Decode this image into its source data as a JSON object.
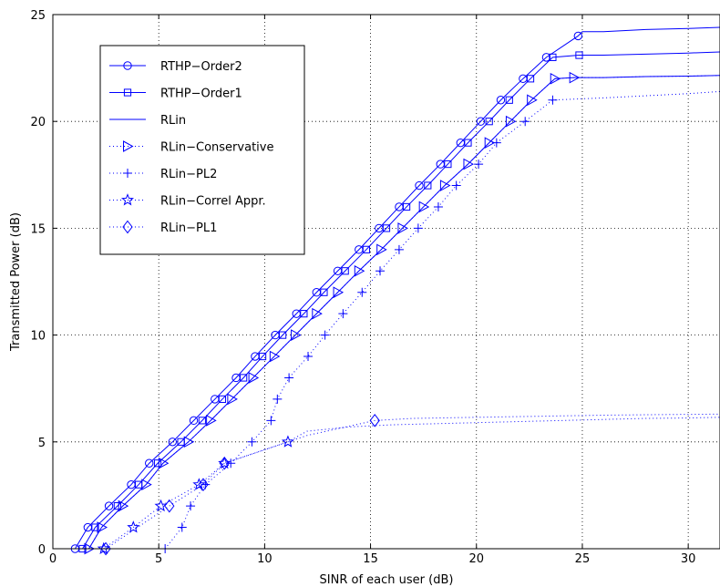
{
  "chart_data": {
    "type": "line",
    "xlabel": "SINR of each user  (dB)",
    "ylabel": "Transmitted Power (dB)",
    "xlim": [
      0,
      31.5
    ],
    "ylim": [
      0,
      25
    ],
    "xticks": [
      0,
      5,
      10,
      15,
      20,
      25,
      30
    ],
    "yticks": [
      0,
      5,
      10,
      15,
      20,
      25
    ],
    "grid": true,
    "legend_position": "top-left",
    "series": [
      {
        "name": "RTHP−Order2",
        "color": "#0000ff",
        "line": "solid",
        "marker": "circle",
        "line_points": [
          [
            1.05,
            0
          ],
          [
            1.65,
            1
          ],
          [
            2.65,
            2
          ],
          [
            3.7,
            3
          ],
          [
            4.55,
            4
          ],
          [
            5.65,
            5
          ],
          [
            6.65,
            6
          ],
          [
            7.65,
            7
          ],
          [
            8.65,
            8
          ],
          [
            9.55,
            9
          ],
          [
            10.5,
            10
          ],
          [
            11.5,
            11
          ],
          [
            12.45,
            12
          ],
          [
            13.45,
            13
          ],
          [
            14.45,
            14
          ],
          [
            15.4,
            15
          ],
          [
            16.35,
            16
          ],
          [
            17.3,
            17
          ],
          [
            18.3,
            18
          ],
          [
            19.25,
            19
          ],
          [
            20.2,
            20
          ],
          [
            21.15,
            21
          ],
          [
            22.2,
            22
          ],
          [
            23.3,
            23
          ],
          [
            24.8,
            24
          ],
          [
            25.0,
            24.2
          ],
          [
            26,
            24.2
          ],
          [
            28,
            24.3
          ],
          [
            30,
            24.35
          ],
          [
            31.5,
            24.4
          ]
        ],
        "marker_points": [
          [
            1.05,
            0
          ],
          [
            1.65,
            1
          ],
          [
            2.65,
            2
          ],
          [
            3.7,
            3
          ],
          [
            4.55,
            4
          ],
          [
            5.65,
            5
          ],
          [
            6.65,
            6
          ],
          [
            7.65,
            7
          ],
          [
            8.65,
            8
          ],
          [
            9.55,
            9
          ],
          [
            10.5,
            10
          ],
          [
            11.5,
            11
          ],
          [
            12.45,
            12
          ],
          [
            13.45,
            13
          ],
          [
            14.45,
            14
          ],
          [
            15.4,
            15
          ],
          [
            16.35,
            16
          ],
          [
            17.3,
            17
          ],
          [
            18.3,
            18
          ],
          [
            19.25,
            19
          ],
          [
            20.2,
            20
          ],
          [
            21.15,
            21
          ],
          [
            22.2,
            22
          ],
          [
            23.3,
            23
          ],
          [
            24.8,
            24
          ]
        ]
      },
      {
        "name": "RTHP−Order1",
        "color": "#0000ff",
        "line": "solid",
        "marker": "square",
        "line_points": [
          [
            1.4,
            0
          ],
          [
            2.0,
            1
          ],
          [
            3.05,
            2
          ],
          [
            4.05,
            3
          ],
          [
            4.95,
            4
          ],
          [
            6.05,
            5
          ],
          [
            7.05,
            6
          ],
          [
            8.0,
            7
          ],
          [
            9.0,
            8
          ],
          [
            9.9,
            9
          ],
          [
            10.85,
            10
          ],
          [
            11.85,
            11
          ],
          [
            12.8,
            12
          ],
          [
            13.8,
            13
          ],
          [
            14.8,
            14
          ],
          [
            15.75,
            15
          ],
          [
            16.7,
            16
          ],
          [
            17.7,
            17
          ],
          [
            18.65,
            18
          ],
          [
            19.6,
            19
          ],
          [
            20.6,
            20
          ],
          [
            21.55,
            21
          ],
          [
            22.55,
            22
          ],
          [
            23.6,
            23
          ],
          [
            24.85,
            23.1
          ],
          [
            26,
            23.1
          ],
          [
            28,
            23.15
          ],
          [
            30,
            23.2
          ],
          [
            31.5,
            23.25
          ]
        ],
        "marker_points": [
          [
            1.4,
            0
          ],
          [
            2.0,
            1
          ],
          [
            3.05,
            2
          ],
          [
            4.05,
            3
          ],
          [
            4.95,
            4
          ],
          [
            6.05,
            5
          ],
          [
            7.05,
            6
          ],
          [
            8.0,
            7
          ],
          [
            9.0,
            8
          ],
          [
            9.9,
            9
          ],
          [
            10.85,
            10
          ],
          [
            11.85,
            11
          ],
          [
            12.8,
            12
          ],
          [
            13.8,
            13
          ],
          [
            14.8,
            14
          ],
          [
            15.75,
            15
          ],
          [
            16.7,
            16
          ],
          [
            17.7,
            17
          ],
          [
            18.65,
            18
          ],
          [
            19.6,
            19
          ],
          [
            20.6,
            20
          ],
          [
            21.55,
            21
          ],
          [
            22.55,
            22
          ],
          [
            23.6,
            23
          ],
          [
            24.85,
            23.1
          ]
        ]
      },
      {
        "name": "RLin",
        "color": "#0000ff",
        "line": "solid",
        "marker": "none",
        "line_points": [
          [
            1.7,
            0
          ],
          [
            2.3,
            1
          ],
          [
            3.3,
            2
          ],
          [
            4.4,
            3
          ],
          [
            5.2,
            4
          ],
          [
            6.4,
            5
          ],
          [
            7.45,
            6
          ],
          [
            8.45,
            7
          ],
          [
            9.45,
            8
          ],
          [
            10.45,
            9
          ],
          [
            11.45,
            10
          ],
          [
            12.45,
            11
          ],
          [
            13.45,
            12
          ],
          [
            14.45,
            13
          ],
          [
            15.5,
            14
          ],
          [
            16.5,
            15
          ],
          [
            17.5,
            16
          ],
          [
            18.5,
            17
          ],
          [
            19.6,
            18
          ],
          [
            20.6,
            19
          ],
          [
            21.6,
            20
          ],
          [
            22.6,
            21
          ],
          [
            23.7,
            22
          ],
          [
            24.6,
            22.05
          ],
          [
            26,
            22.05
          ],
          [
            28,
            22.1
          ],
          [
            30,
            22.12
          ],
          [
            31.5,
            22.15
          ]
        ]
      },
      {
        "name": "RLin−Conservative",
        "color": "#0000ff",
        "line": "dotted",
        "marker": "triangle-right",
        "line_points": [
          [
            1.7,
            0
          ],
          [
            2.3,
            1
          ],
          [
            3.3,
            2
          ],
          [
            4.4,
            3
          ],
          [
            5.2,
            4
          ],
          [
            6.4,
            5
          ],
          [
            7.45,
            6
          ],
          [
            8.45,
            7
          ],
          [
            9.45,
            8
          ],
          [
            10.45,
            9
          ],
          [
            11.45,
            10
          ],
          [
            12.45,
            11
          ],
          [
            13.45,
            12
          ],
          [
            14.45,
            13
          ],
          [
            15.5,
            14
          ],
          [
            16.5,
            15
          ],
          [
            17.5,
            16
          ],
          [
            18.5,
            17
          ],
          [
            19.6,
            18
          ],
          [
            20.6,
            19
          ],
          [
            21.6,
            20
          ],
          [
            22.6,
            21
          ],
          [
            23.7,
            22
          ],
          [
            24.6,
            22.05
          ],
          [
            26,
            22.05
          ],
          [
            28,
            22.1
          ],
          [
            30,
            22.12
          ],
          [
            31.5,
            22.15
          ]
        ],
        "marker_points": [
          [
            1.7,
            0
          ],
          [
            2.3,
            1
          ],
          [
            3.3,
            2
          ],
          [
            4.4,
            3
          ],
          [
            5.2,
            4
          ],
          [
            6.4,
            5
          ],
          [
            7.45,
            6
          ],
          [
            8.45,
            7
          ],
          [
            9.45,
            8
          ],
          [
            10.45,
            9
          ],
          [
            11.45,
            10
          ],
          [
            12.45,
            11
          ],
          [
            13.45,
            12
          ],
          [
            14.45,
            13
          ],
          [
            15.5,
            14
          ],
          [
            16.5,
            15
          ],
          [
            17.5,
            16
          ],
          [
            18.5,
            17
          ],
          [
            19.6,
            18
          ],
          [
            20.6,
            19
          ],
          [
            21.6,
            20
          ],
          [
            22.6,
            21
          ],
          [
            23.7,
            22
          ],
          [
            24.6,
            22.05
          ]
        ]
      },
      {
        "name": "RLin−PL2",
        "color": "#0000ff",
        "line": "dotted",
        "marker": "plus",
        "line_points": [
          [
            5.3,
            0
          ],
          [
            6.1,
            1
          ],
          [
            6.5,
            2
          ],
          [
            7.2,
            3
          ],
          [
            8.4,
            4
          ],
          [
            9.4,
            5
          ],
          [
            10.3,
            6
          ],
          [
            10.6,
            7
          ],
          [
            11.15,
            8
          ],
          [
            12.05,
            9
          ],
          [
            12.85,
            10
          ],
          [
            13.7,
            11
          ],
          [
            14.6,
            12
          ],
          [
            15.45,
            13
          ],
          [
            16.35,
            14
          ],
          [
            17.25,
            15
          ],
          [
            18.2,
            16
          ],
          [
            19.05,
            17
          ],
          [
            20.1,
            18
          ],
          [
            20.95,
            19
          ],
          [
            22.3,
            20
          ],
          [
            23.6,
            21
          ],
          [
            24.75,
            21.05
          ],
          [
            26,
            21.1
          ],
          [
            28,
            21.2
          ],
          [
            30,
            21.3
          ],
          [
            31.5,
            21.4
          ]
        ],
        "marker_points": [
          [
            5.3,
            0
          ],
          [
            6.1,
            1
          ],
          [
            6.5,
            2
          ],
          [
            7.2,
            3
          ],
          [
            8.4,
            4
          ],
          [
            9.4,
            5
          ],
          [
            10.3,
            6
          ],
          [
            10.6,
            7
          ],
          [
            11.15,
            8
          ],
          [
            12.05,
            9
          ],
          [
            12.85,
            10
          ],
          [
            13.7,
            11
          ],
          [
            14.6,
            12
          ],
          [
            15.45,
            13
          ],
          [
            16.35,
            14
          ],
          [
            17.25,
            15
          ],
          [
            18.2,
            16
          ],
          [
            19.05,
            17
          ],
          [
            20.1,
            18
          ],
          [
            20.95,
            19
          ],
          [
            22.3,
            20
          ],
          [
            23.6,
            21
          ]
        ]
      },
      {
        "name": "RLin−Correl Appr.",
        "color": "#0000ff",
        "line": "dotted",
        "marker": "star",
        "line_points": [
          [
            2.4,
            0
          ],
          [
            3.8,
            1
          ],
          [
            5.1,
            2
          ],
          [
            6.9,
            3
          ],
          [
            8.1,
            4
          ],
          [
            11.1,
            5
          ],
          [
            12,
            5.5
          ],
          [
            14,
            5.7
          ],
          [
            16,
            5.8
          ],
          [
            18,
            5.85
          ],
          [
            20,
            5.9
          ],
          [
            22,
            5.95
          ],
          [
            24,
            6.0
          ],
          [
            26,
            6.05
          ],
          [
            28,
            6.1
          ],
          [
            30,
            6.12
          ],
          [
            31.5,
            6.15
          ]
        ],
        "marker_points": [
          [
            2.4,
            0
          ],
          [
            3.8,
            1
          ],
          [
            5.1,
            2
          ],
          [
            6.9,
            3
          ],
          [
            8.1,
            4
          ],
          [
            11.1,
            5
          ]
        ]
      },
      {
        "name": "RLin−PL1",
        "color": "#0000ff",
        "line": "dotted",
        "marker": "diamond",
        "line_points": [
          [
            2.5,
            0
          ],
          [
            5.5,
            2
          ],
          [
            7.1,
            3
          ],
          [
            8.1,
            4
          ],
          [
            12,
            5.3
          ],
          [
            15.2,
            6
          ],
          [
            17,
            6.1
          ],
          [
            20,
            6.15
          ],
          [
            23,
            6.2
          ],
          [
            26,
            6.25
          ],
          [
            29,
            6.28
          ],
          [
            31.5,
            6.3
          ]
        ],
        "marker_points": [
          [
            2.5,
            0
          ],
          [
            5.5,
            2
          ],
          [
            7.1,
            3
          ],
          [
            8.1,
            4
          ],
          [
            15.2,
            6
          ]
        ]
      }
    ]
  }
}
